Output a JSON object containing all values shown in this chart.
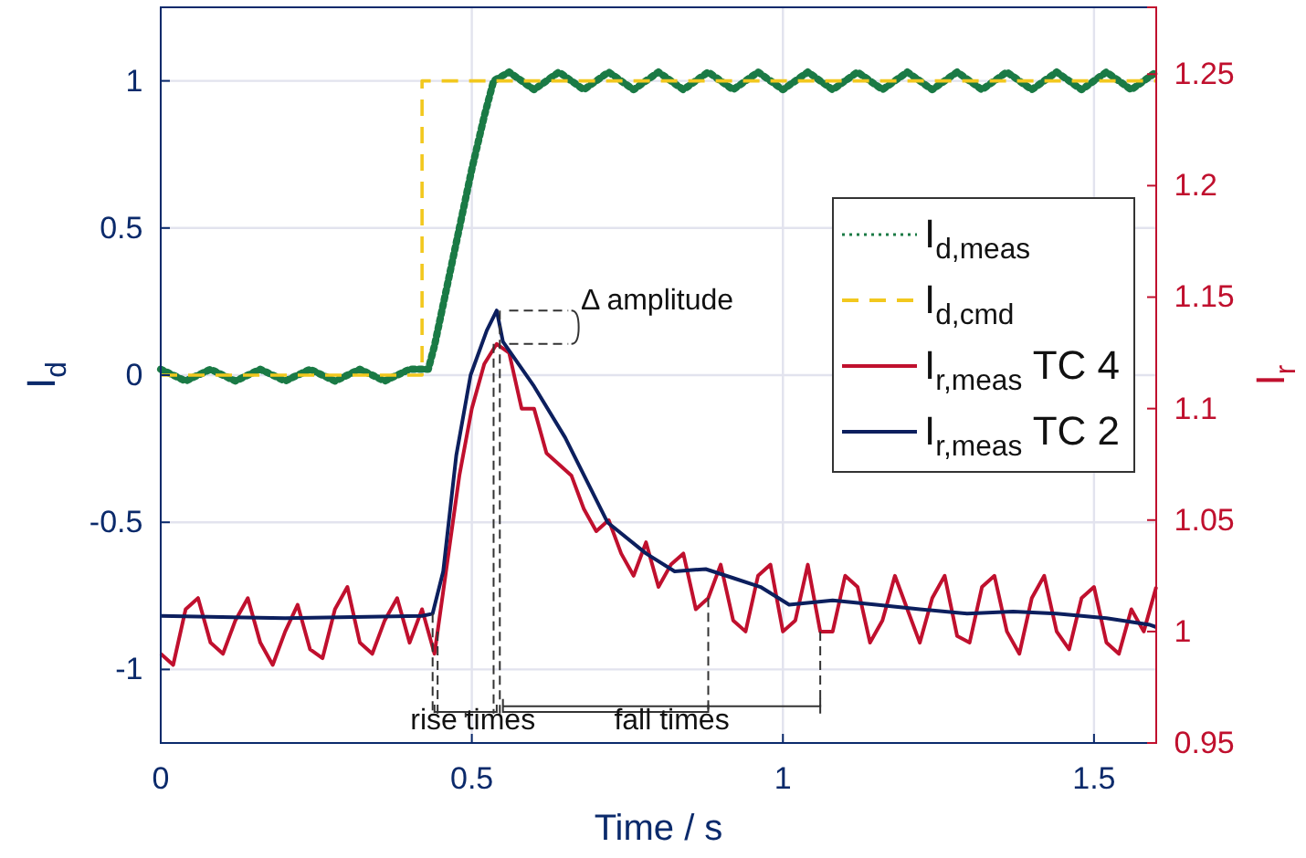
{
  "chart_data": {
    "type": "line",
    "xlabel": "Time / s",
    "ylabel": "I$_{d}$",
    "y2label": "I$_{r}$",
    "xlim": [
      0,
      1.6
    ],
    "xticks": [
      0,
      0.5,
      1,
      1.5
    ],
    "ylim": [
      -1.25,
      1.25
    ],
    "yticks": [
      -1,
      -0.5,
      0,
      0.5,
      1
    ],
    "y2lim": [
      0.95,
      1.28
    ],
    "y2ticks": [
      0.95,
      1,
      1.05,
      1.1,
      1.15,
      1.2,
      1.25
    ],
    "grid": true,
    "legend": "right",
    "annotations": [
      {
        "text": "Δ amplitude",
        "x": 0.54,
        "y": 0.22
      },
      {
        "text": "rise times",
        "x": 0.437,
        "y": -0.81
      },
      {
        "text": "fall times",
        "x": 0.88,
        "y": -0.76
      }
    ],
    "series": [
      {
        "name": "I$_{d,meas}$",
        "color": "#1a7a45",
        "line_style": "dotted",
        "x": [
          0,
          0.04,
          0.08,
          0.12,
          0.16,
          0.2,
          0.24,
          0.28,
          0.32,
          0.36,
          0.4,
          0.43,
          0.44,
          0.46,
          0.48,
          0.5,
          0.52,
          0.535,
          0.56,
          0.6,
          0.64,
          0.68,
          0.72,
          0.76,
          0.8,
          0.84,
          0.88,
          0.92,
          0.96,
          1.0,
          1.04,
          1.08,
          1.12,
          1.16,
          1.2,
          1.24,
          1.28,
          1.32,
          1.36,
          1.4,
          1.44,
          1.48,
          1.52,
          1.56,
          1.6
        ],
        "values": [
          0.02,
          -0.02,
          0.02,
          -0.02,
          0.02,
          -0.02,
          0.02,
          -0.02,
          0.02,
          -0.02,
          0.02,
          0.02,
          0.1,
          0.3,
          0.5,
          0.7,
          0.88,
          1.0,
          1.03,
          0.97,
          1.03,
          0.97,
          1.03,
          0.97,
          1.03,
          0.97,
          1.03,
          0.97,
          1.03,
          0.97,
          1.03,
          0.97,
          1.03,
          0.97,
          1.03,
          0.97,
          1.03,
          0.97,
          1.03,
          0.97,
          1.03,
          0.97,
          1.03,
          0.97,
          1.03
        ]
      },
      {
        "name": "I$_{d,cmd}$",
        "color": "#f2c81e",
        "line_style": "dashed",
        "x": [
          0,
          0.42,
          0.42,
          1.6
        ],
        "values": [
          0,
          0,
          1,
          1
        ]
      },
      {
        "name": "I$_{r,meas}$ TC 4",
        "color": "#c0102e",
        "line_style": "solid",
        "axis": "y2",
        "x": [
          0,
          0.02,
          0.04,
          0.06,
          0.08,
          0.1,
          0.12,
          0.14,
          0.16,
          0.18,
          0.2,
          0.22,
          0.24,
          0.26,
          0.28,
          0.3,
          0.32,
          0.34,
          0.36,
          0.38,
          0.4,
          0.42,
          0.44,
          0.46,
          0.48,
          0.5,
          0.52,
          0.54,
          0.56,
          0.58,
          0.6,
          0.62,
          0.64,
          0.66,
          0.68,
          0.7,
          0.72,
          0.74,
          0.76,
          0.78,
          0.8,
          0.82,
          0.84,
          0.86,
          0.88,
          0.9,
          0.92,
          0.94,
          0.96,
          0.98,
          1.0,
          1.02,
          1.04,
          1.06,
          1.08,
          1.1,
          1.12,
          1.14,
          1.16,
          1.18,
          1.2,
          1.22,
          1.24,
          1.26,
          1.28,
          1.3,
          1.32,
          1.34,
          1.36,
          1.38,
          1.4,
          1.42,
          1.44,
          1.46,
          1.48,
          1.5,
          1.52,
          1.54,
          1.56,
          1.58,
          1.6
        ],
        "values": [
          0.99,
          0.985,
          1.01,
          1.015,
          0.995,
          0.99,
          1.005,
          1.015,
          0.995,
          0.985,
          1.0,
          1.012,
          0.992,
          0.988,
          1.01,
          1.02,
          0.995,
          0.99,
          1.005,
          1.015,
          0.995,
          1.01,
          0.99,
          1.03,
          1.07,
          1.1,
          1.12,
          1.129,
          1.125,
          1.1,
          1.1,
          1.08,
          1.075,
          1.07,
          1.055,
          1.045,
          1.05,
          1.035,
          1.025,
          1.04,
          1.02,
          1.03,
          1.035,
          1.01,
          1.015,
          1.03,
          1.005,
          1.0,
          1.025,
          1.03,
          1.0,
          1.005,
          1.03,
          1.0,
          1.0,
          1.025,
          1.02,
          0.995,
          1.005,
          1.025,
          1.01,
          0.995,
          1.015,
          1.025,
          0.998,
          0.995,
          1.02,
          1.025,
          1.0,
          0.99,
          1.015,
          1.025,
          1.0,
          0.992,
          1.015,
          1.02,
          0.995,
          0.99,
          1.01,
          1.0,
          1.02
        ]
      },
      {
        "name": "I$_{r,meas}$ TC 2",
        "color": "#0c1f5e",
        "line_style": "solid",
        "axis": "y2",
        "x": [
          0,
          0.2,
          0.42,
          0.437,
          0.454,
          0.475,
          0.498,
          0.524,
          0.54,
          0.55,
          0.6,
          0.65,
          0.718,
          0.78,
          0.826,
          0.876,
          0.92,
          0.964,
          1.01,
          1.08,
          1.15,
          1.22,
          1.296,
          1.37,
          1.44,
          1.52,
          1.59,
          1.6
        ],
        "values": [
          1.007,
          1.006,
          1.007,
          1.008,
          1.027,
          1.079,
          1.115,
          1.135,
          1.144,
          1.13,
          1.11,
          1.087,
          1.049,
          1.035,
          1.027,
          1.028,
          1.024,
          1.02,
          1.012,
          1.014,
          1.012,
          1.01,
          1.008,
          1.009,
          1.008,
          1.006,
          1.003,
          1.002
        ]
      }
    ]
  }
}
